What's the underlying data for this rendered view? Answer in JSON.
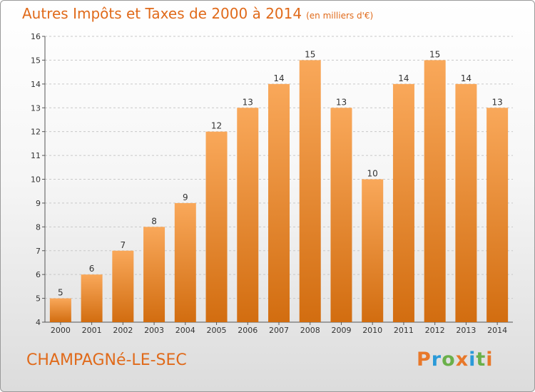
{
  "title": "Autres Impôts et Taxes de 2000 à 2014",
  "unit_note": "(en milliers d'€)",
  "commune": "CHAMPAGNé-LE-SEC",
  "logo": {
    "text": "Proxiti",
    "colors": [
      "#e8782a",
      "#2a9ad8",
      "#6ab04a",
      "#e8782a",
      "#2a9ad8",
      "#6ab04a",
      "#e8782a"
    ]
  },
  "colors": {
    "bar_light": "#f9a85a",
    "bar_dark": "#d26d10",
    "title": "#e06a1a",
    "axis": "#555555",
    "grid": "#c8c8c8"
  },
  "chart_data": {
    "type": "bar",
    "categories": [
      "2000",
      "2001",
      "2002",
      "2003",
      "2004",
      "2005",
      "2006",
      "2007",
      "2008",
      "2009",
      "2010",
      "2011",
      "2012",
      "2013",
      "2014"
    ],
    "values": [
      5,
      6,
      7,
      8,
      9,
      12,
      13,
      14,
      15,
      13,
      10,
      14,
      15,
      14,
      13
    ],
    "ylim": [
      4,
      16
    ],
    "yticks": [
      4,
      5,
      6,
      7,
      8,
      9,
      10,
      11,
      12,
      13,
      14,
      15,
      16
    ],
    "grid": true
  }
}
